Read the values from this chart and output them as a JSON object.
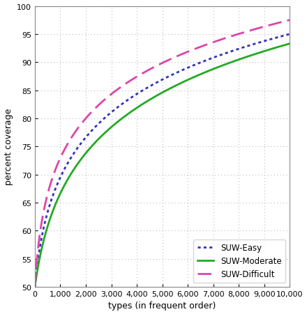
{
  "title": "",
  "xlabel": "types (in frequent order)",
  "ylabel": "percent coverage",
  "xlim": [
    0,
    10000
  ],
  "ylim": [
    50,
    100
  ],
  "xticks": [
    0,
    1000,
    2000,
    3000,
    4000,
    5000,
    6000,
    7000,
    8000,
    9000,
    10000
  ],
  "yticks": [
    50,
    55,
    60,
    65,
    70,
    75,
    80,
    85,
    90,
    95,
    100
  ],
  "curves": [
    {
      "label": "SUW-Easy",
      "color": "#3333bb",
      "linestyle": "dotted",
      "linewidth": 2.0,
      "end_val": 95.0,
      "k": 50.0,
      "alpha": 0.38
    },
    {
      "label": "SUW-Moderate",
      "color": "#22aa22",
      "linestyle": "solid",
      "linewidth": 2.0,
      "end_val": 93.3,
      "k": 50.0,
      "alpha": 0.315
    },
    {
      "label": "SUW-Difficult",
      "color": "#dd44aa",
      "linestyle": "dashed",
      "linewidth": 2.0,
      "end_val": 97.5,
      "k": 50.0,
      "alpha": 0.46
    }
  ],
  "grid_color": "#bbbbbb",
  "grid_linestyle": "dotted",
  "background_color": "#ffffff",
  "legend_loc": "lower right",
  "legend_fontsize": 8.5,
  "axis_fontsize": 9,
  "tick_fontsize": 8
}
